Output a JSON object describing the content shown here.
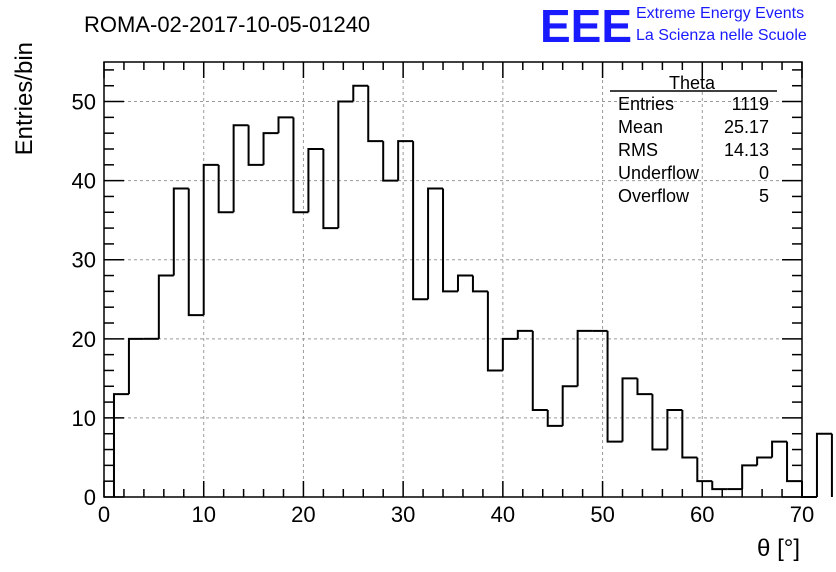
{
  "chart_data": {
    "type": "histogram",
    "title": "ROMA-02-2017-10-05-01240",
    "xlabel": "θ [°]",
    "ylabel": "Entries/bin",
    "xlim": [
      0,
      70
    ],
    "ylim": [
      0,
      55
    ],
    "bin_width": 1.5,
    "bin_start": 1.0,
    "xticks": [
      0,
      10,
      20,
      30,
      40,
      50,
      60,
      70
    ],
    "yticks": [
      0,
      10,
      20,
      30,
      40,
      50
    ],
    "grid": true,
    "values": [
      13,
      20,
      20,
      28,
      39,
      23,
      42,
      36,
      47,
      42,
      46,
      48,
      36,
      44,
      34,
      50,
      52,
      45,
      40,
      45,
      25,
      39,
      26,
      28,
      26,
      16,
      20,
      21,
      11,
      9,
      14,
      21,
      21,
      7,
      15,
      13,
      6,
      11,
      5,
      2,
      1,
      1,
      4,
      5,
      7,
      2,
      0,
      8
    ]
  },
  "brand": {
    "logo": "EEE",
    "line1": "Extreme Energy Events",
    "line2": "La Scienza nelle Scuole",
    "color": "#1a1aff"
  },
  "stats": {
    "title": "Theta",
    "rows": [
      {
        "label": "Entries",
        "value": "1119"
      },
      {
        "label": "Mean",
        "value": "25.17"
      },
      {
        "label": "RMS",
        "value": "14.13"
      },
      {
        "label": "Underflow",
        "value": "0"
      },
      {
        "label": "Overflow",
        "value": "5"
      }
    ]
  }
}
